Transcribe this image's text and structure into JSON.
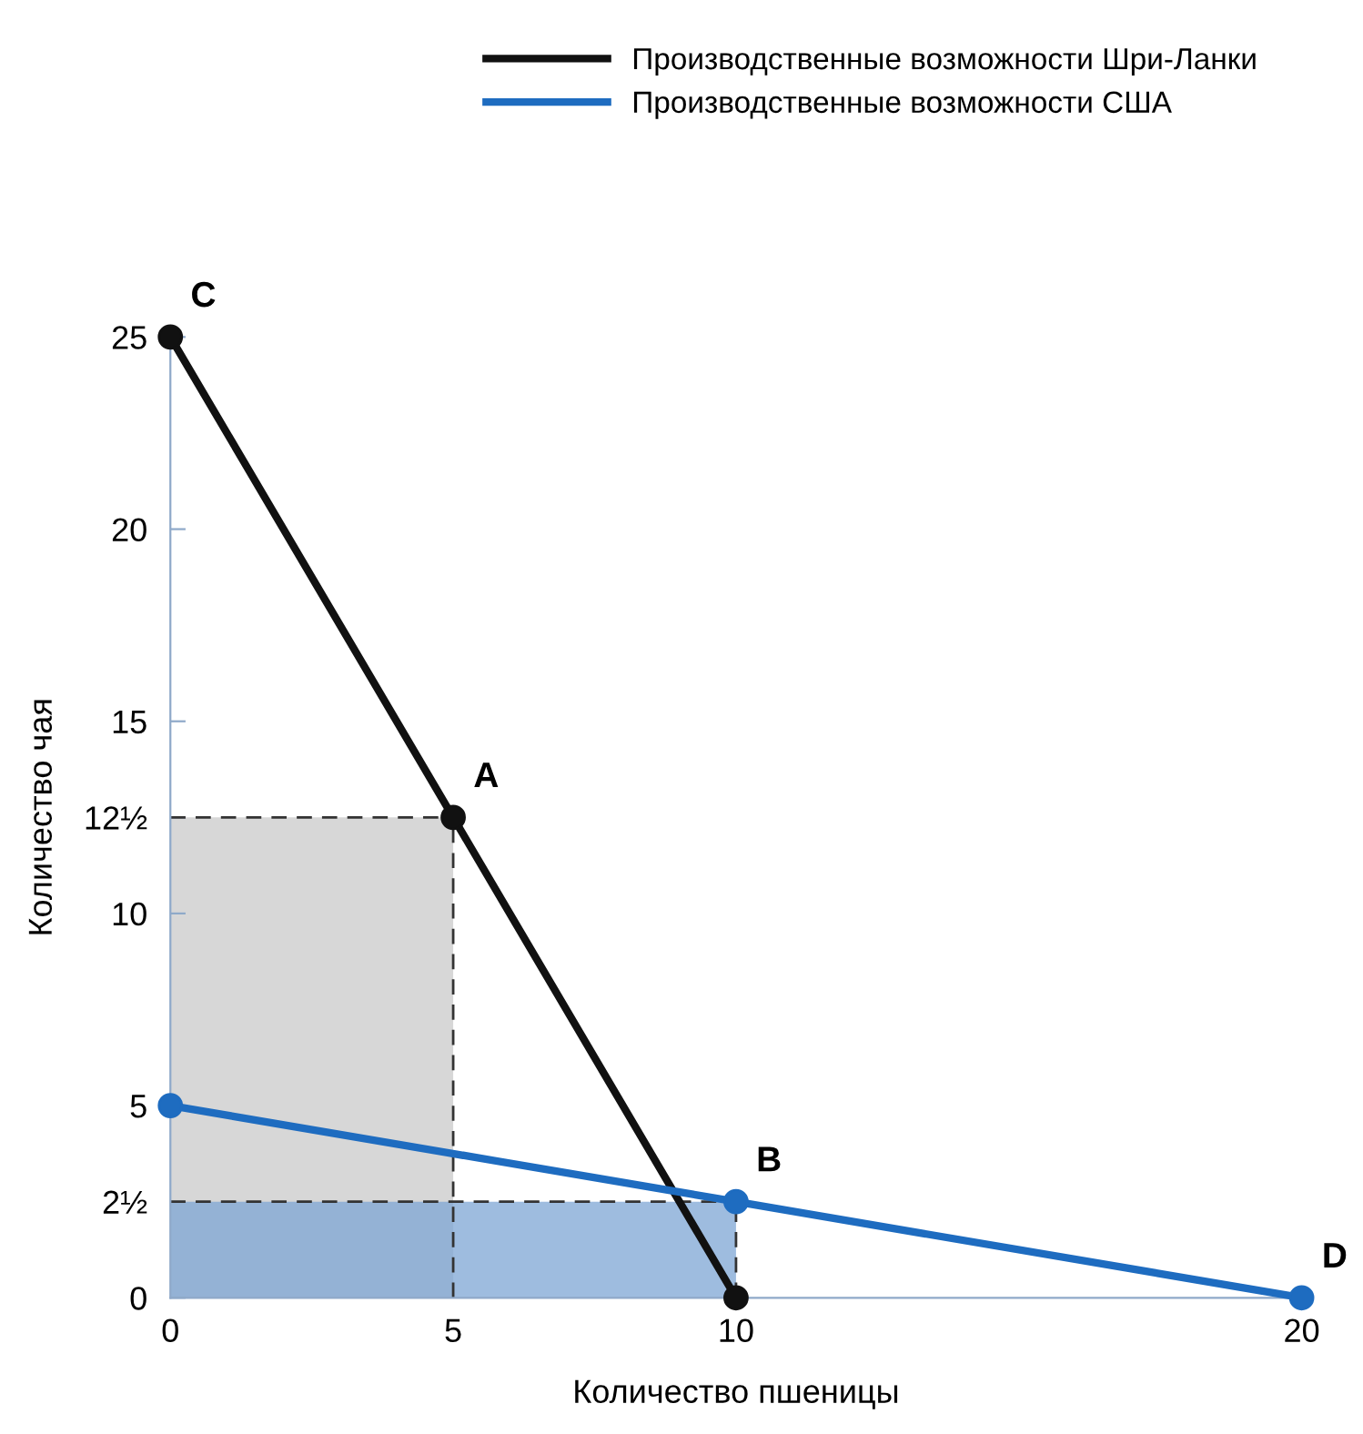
{
  "chart_data": {
    "type": "line",
    "xlabel": "Количество пшеницы",
    "ylabel": "Количество чая",
    "xlim": [
      0,
      20
    ],
    "ylim": [
      0,
      25
    ],
    "xticks": [
      0,
      5,
      10,
      20
    ],
    "yticks": [
      0,
      {
        "value": 2.5,
        "label": "2½"
      },
      5,
      10,
      {
        "value": 12.5,
        "label": "12½"
      },
      15,
      20,
      25
    ],
    "legend": "top",
    "grid": false,
    "series": [
      {
        "type": "area",
        "x": [
          0,
          5
        ],
        "values": [
          12.5,
          12.5
        ],
        "color": "#c9c9c9",
        "line_style": "dashed"
      },
      {
        "type": "area",
        "x": [
          0,
          10
        ],
        "values": [
          2.5,
          2.5
        ],
        "color": "#7ea6d4",
        "line_style": "dashed"
      },
      {
        "name": "Производственные возможности Шри-Ланки",
        "x": [
          0,
          5,
          10
        ],
        "values": [
          25,
          12.5,
          0
        ],
        "color": "#111111",
        "marker": "circle"
      },
      {
        "name": "Производственные возможности США",
        "x": [
          0,
          10,
          20
        ],
        "values": [
          5,
          2.5,
          0
        ],
        "color": "#1e6cc0",
        "marker": "circle"
      }
    ],
    "annotations": [
      {
        "text": "C",
        "x": 0,
        "y": 25
      },
      {
        "text": "A",
        "x": 5,
        "y": 12.5
      },
      {
        "text": "B",
        "x": 10,
        "y": 2.5
      },
      {
        "text": "D",
        "x": 20,
        "y": 0
      }
    ]
  }
}
